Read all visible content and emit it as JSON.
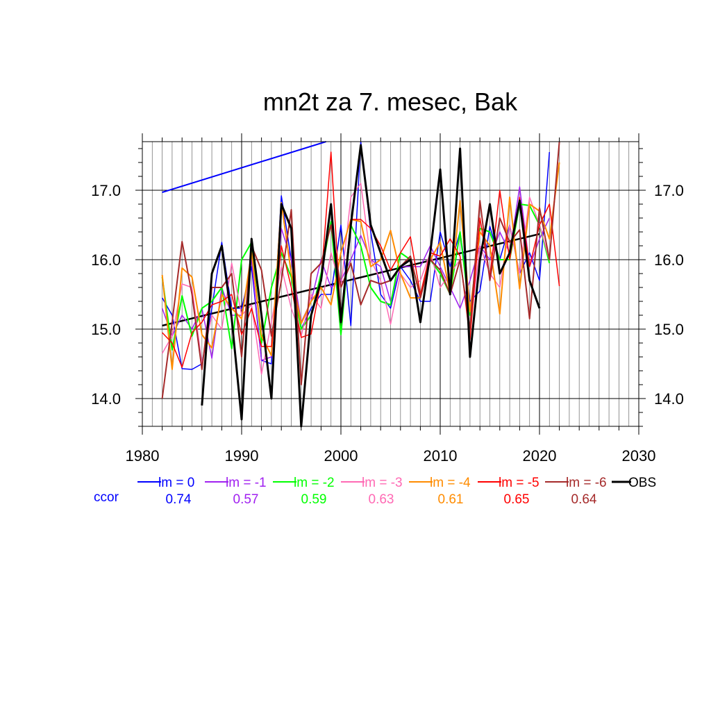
{
  "chart_data": {
    "type": "line",
    "title": "mn2t za 7. mesec, Bak",
    "xlim": [
      1980,
      2030
    ],
    "ylim": [
      13.6,
      17.7
    ],
    "x_ticks": [
      "1980",
      "1990",
      "2000",
      "2010",
      "2020",
      "2030"
    ],
    "y_ticks": [
      "14.0",
      "15.0",
      "16.0",
      "17.0"
    ],
    "grid": "vertical every year, horizontal at major ticks",
    "ccor_label": "ccor",
    "series": [
      {
        "name": "lm = 0",
        "color": "#0000ff",
        "ccor": "0.74",
        "width": 1.5,
        "x": [
          1982,
          1983,
          1984,
          1985,
          1986,
          1987,
          1988,
          1989,
          1990,
          1991,
          1992,
          1993,
          1994,
          1995,
          1996,
          1997,
          1998,
          1999,
          2000,
          2001,
          2002,
          2003,
          2004,
          2005,
          2006,
          2007,
          2008,
          2009,
          2010,
          2011,
          2012,
          2013,
          2014,
          2015,
          2016,
          2017,
          2018,
          2019,
          2020,
          2021
        ],
        "y": [
          15.45,
          15.2,
          14.43,
          14.42,
          14.5,
          15.3,
          16.25,
          15.3,
          15.3,
          15.9,
          14.55,
          14.5,
          16.92,
          16.0,
          15.0,
          15.3,
          15.5,
          15.5,
          16.5,
          15.05,
          17.7,
          16.4,
          15.5,
          15.3,
          15.9,
          15.7,
          15.4,
          15.4,
          16.4,
          15.9,
          16.4,
          15.4,
          15.55,
          16.48,
          16.0,
          16.5,
          15.8,
          16.1,
          15.7,
          17.55
        ]
      },
      {
        "name": "lm = -1",
        "color": "#a020f0",
        "ccor": "0.57",
        "width": 1.5,
        "x": [
          1982,
          1983,
          1984,
          1985,
          1986,
          1987,
          1988,
          1989,
          1990,
          1991,
          1992,
          1993,
          1994,
          1995,
          1996,
          1997,
          1998,
          1999,
          2000,
          2001,
          2002,
          2003,
          2004,
          2005,
          2006,
          2007,
          2008,
          2009,
          2010,
          2011,
          2012,
          2013,
          2014,
          2015,
          2016,
          2017,
          2018,
          2019,
          2020,
          2021
        ],
        "y": [
          15.3,
          14.9,
          15.2,
          15.0,
          15.3,
          14.58,
          15.6,
          15.2,
          15.2,
          16.0,
          14.55,
          14.6,
          16.45,
          16.0,
          15.1,
          15.4,
          16.0,
          15.6,
          15.7,
          16.0,
          16.35,
          16.0,
          15.9,
          15.4,
          15.9,
          15.9,
          15.9,
          16.2,
          15.9,
          15.6,
          15.3,
          15.7,
          16.2,
          16.0,
          16.4,
          16.1,
          17.05,
          15.9,
          16.3,
          16.6
        ]
      },
      {
        "name": "lm = -2",
        "color": "#00ff00",
        "ccor": "0.59",
        "width": 2.0,
        "x": [
          1982,
          1983,
          1984,
          1985,
          1986,
          1987,
          1988,
          1989,
          1990,
          1991,
          1992,
          1993,
          1994,
          1995,
          1996,
          1997,
          1998,
          1999,
          2000,
          2001,
          2002,
          2003,
          2004,
          2005,
          2006,
          2007,
          2008,
          2009,
          2010,
          2011,
          2012,
          2013,
          2014,
          2015,
          2016,
          2017,
          2018,
          2019,
          2020,
          2021
        ],
        "y": [
          15.75,
          14.7,
          15.48,
          14.9,
          15.3,
          15.4,
          15.6,
          14.72,
          16.0,
          16.25,
          14.8,
          15.6,
          16.1,
          15.75,
          15.0,
          15.2,
          15.8,
          16.55,
          14.92,
          16.5,
          16.2,
          15.6,
          15.4,
          15.35,
          16.1,
          16.0,
          15.5,
          16.0,
          15.8,
          15.5,
          16.4,
          15.2,
          16.45,
          16.4,
          16.0,
          16.0,
          16.8,
          16.78,
          16.5,
          15.95
        ]
      },
      {
        "name": "lm = -3",
        "color": "#ff69b4",
        "ccor": "0.63",
        "width": 1.5,
        "x": [
          1982,
          1983,
          1984,
          1985,
          1986,
          1987,
          1988,
          1989,
          1990,
          1991,
          1992,
          1993,
          1994,
          1995,
          1996,
          1997,
          1998,
          1999,
          2000,
          2001,
          2002,
          2003,
          2004,
          2005,
          2006,
          2007,
          2008,
          2009,
          2010,
          2011,
          2012,
          2013,
          2014,
          2015,
          2016,
          2017,
          2018,
          2019,
          2020,
          2021
        ],
        "y": [
          14.65,
          14.9,
          15.65,
          15.6,
          14.5,
          15.2,
          15.0,
          15.95,
          15.2,
          15.35,
          14.35,
          15.1,
          15.9,
          15.3,
          14.9,
          15.5,
          15.3,
          16.1,
          15.6,
          16.9,
          17.1,
          16.0,
          15.7,
          15.07,
          15.8,
          15.6,
          15.7,
          16.1,
          15.6,
          15.8,
          16.0,
          15.0,
          16.2,
          15.8,
          15.6,
          16.5,
          15.8,
          16.9,
          16.5,
          16.0
        ]
      },
      {
        "name": "lm = -4",
        "color": "#ff8c00",
        "ccor": "0.61",
        "width": 2.0,
        "x": [
          1982,
          1983,
          1984,
          1985,
          1986,
          1987,
          1988,
          1989,
          1990,
          1991,
          1992,
          1993,
          1994,
          1995,
          1996,
          1997,
          1998,
          1999,
          2000,
          2001,
          2002,
          2003,
          2004,
          2005,
          2006,
          2007,
          2008,
          2009,
          2010,
          2011,
          2012,
          2013,
          2014,
          2015,
          2016,
          2017,
          2018,
          2019,
          2020,
          2021,
          2022
        ],
        "y": [
          15.78,
          14.42,
          15.88,
          15.75,
          14.92,
          14.73,
          15.5,
          15.3,
          15.15,
          16.1,
          14.9,
          14.62,
          16.82,
          15.8,
          15.08,
          15.4,
          15.6,
          15.35,
          16.1,
          16.58,
          16.55,
          15.9,
          16.0,
          16.42,
          15.8,
          15.45,
          15.45,
          16.0,
          16.25,
          15.5,
          16.85,
          15.25,
          16.4,
          16.2,
          15.22,
          16.9,
          15.58,
          16.8,
          16.7,
          16.3,
          17.4
        ]
      },
      {
        "name": "lm = -5",
        "color": "#ff0000",
        "ccor": "0.65",
        "width": 1.5,
        "x": [
          1982,
          1983,
          1984,
          1985,
          1986,
          1987,
          1988,
          1989,
          1990,
          1991,
          1992,
          1993,
          1994,
          1995,
          1996,
          1997,
          1998,
          1999,
          2000,
          2001,
          2002,
          2003,
          2004,
          2005,
          2006,
          2007,
          2008,
          2009,
          2010,
          2011,
          2012,
          2013,
          2014,
          2015,
          2016,
          2017,
          2018,
          2019,
          2020,
          2021,
          2022
        ],
        "y": [
          14.95,
          14.8,
          14.45,
          14.95,
          15.1,
          15.35,
          15.4,
          15.5,
          14.92,
          15.3,
          14.75,
          14.75,
          16.2,
          15.6,
          14.88,
          14.93,
          15.7,
          17.55,
          15.15,
          16.58,
          16.58,
          16.45,
          16.2,
          15.85,
          16.1,
          16.33,
          15.5,
          16.1,
          16.05,
          16.3,
          16.05,
          14.85,
          16.6,
          15.75,
          17.0,
          16.0,
          16.9,
          15.9,
          16.5,
          16.8,
          15.62
        ]
      },
      {
        "name": "lm = -6",
        "color": "#a52a2a",
        "ccor": "0.64",
        "width": 2.0,
        "x": [
          1982,
          1983,
          1984,
          1985,
          1986,
          1987,
          1988,
          1989,
          1990,
          1991,
          1992,
          1993,
          1994,
          1995,
          1996,
          1997,
          1998,
          1999,
          2000,
          2001,
          2002,
          2003,
          2004,
          2005,
          2006,
          2007,
          2008,
          2009,
          2010,
          2011,
          2012,
          2013,
          2014,
          2015,
          2016,
          2017,
          2018,
          2019,
          2020,
          2021,
          2022
        ],
        "y": [
          14.0,
          15.1,
          16.26,
          15.5,
          14.42,
          15.6,
          15.6,
          15.8,
          14.6,
          16.2,
          15.85,
          14.9,
          15.7,
          16.72,
          14.2,
          15.8,
          15.95,
          16.5,
          15.6,
          15.95,
          15.35,
          15.7,
          15.65,
          15.7,
          15.9,
          16.05,
          15.45,
          16.0,
          15.85,
          15.5,
          16.0,
          15.0,
          16.85,
          15.7,
          16.6,
          16.25,
          16.43,
          15.15,
          16.75,
          16.0,
          17.7
        ]
      },
      {
        "name": "OBS",
        "color": "#000000",
        "ccor": "",
        "width": 3.0,
        "x": [
          1986,
          1987,
          1988,
          1989,
          1990,
          1991,
          1992,
          1993,
          1994,
          1995,
          1996,
          1997,
          1998,
          1999,
          2000,
          2001,
          2002,
          2003,
          2004,
          2005,
          2006,
          2007,
          2008,
          2009,
          2010,
          2011,
          2012,
          2013,
          2014,
          2015,
          2016,
          2017,
          2018,
          2019,
          2020
        ],
        "y": [
          13.9,
          15.8,
          16.2,
          15.15,
          13.7,
          16.3,
          15.2,
          14.0,
          16.8,
          16.45,
          13.6,
          15.2,
          15.7,
          16.8,
          15.1,
          16.5,
          17.65,
          16.5,
          16.1,
          15.7,
          15.9,
          16.0,
          15.1,
          16.1,
          17.3,
          15.5,
          17.6,
          14.6,
          16.0,
          16.8,
          15.8,
          16.1,
          16.85,
          15.7,
          15.3
        ]
      }
    ],
    "trend_obs": {
      "color": "#000000",
      "x": [
        1982,
        2020
      ],
      "y": [
        15.05,
        16.37
      ]
    },
    "trend_blue": {
      "color": "#0000ff",
      "x": [
        1982,
        1998.5
      ],
      "y": [
        16.97,
        17.7
      ]
    }
  }
}
